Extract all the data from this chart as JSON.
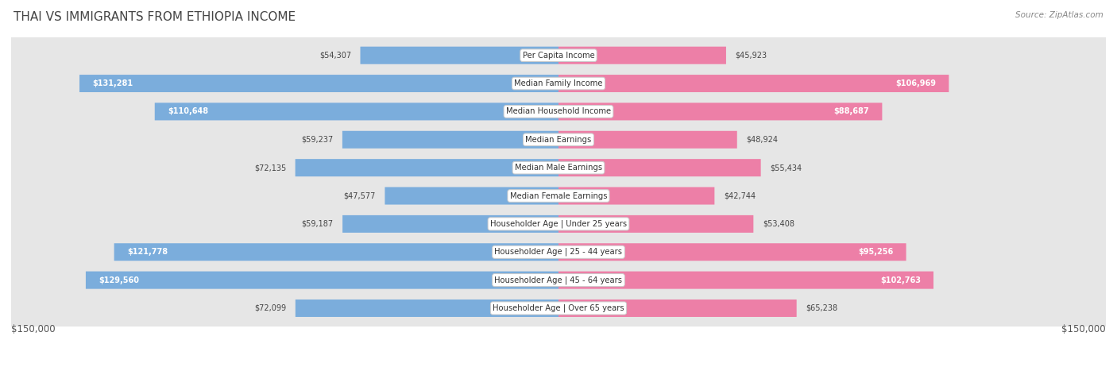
{
  "title": "THAI VS IMMIGRANTS FROM ETHIOPIA INCOME",
  "source": "Source: ZipAtlas.com",
  "categories": [
    "Per Capita Income",
    "Median Family Income",
    "Median Household Income",
    "Median Earnings",
    "Median Male Earnings",
    "Median Female Earnings",
    "Householder Age | Under 25 years",
    "Householder Age | 25 - 44 years",
    "Householder Age | 45 - 64 years",
    "Householder Age | Over 65 years"
  ],
  "thai_values": [
    54307,
    131281,
    110648,
    59237,
    72135,
    47577,
    59187,
    121778,
    129560,
    72099
  ],
  "ethiopia_values": [
    45923,
    106969,
    88687,
    48924,
    55434,
    42744,
    53408,
    95256,
    102763,
    65238
  ],
  "thai_labels": [
    "$54,307",
    "$131,281",
    "$110,648",
    "$59,237",
    "$72,135",
    "$47,577",
    "$59,187",
    "$121,778",
    "$129,560",
    "$72,099"
  ],
  "ethiopia_labels": [
    "$45,923",
    "$106,969",
    "$88,687",
    "$48,924",
    "$55,434",
    "$42,744",
    "$53,408",
    "$95,256",
    "$102,763",
    "$65,238"
  ],
  "max_value": 150000,
  "thai_color_light": "#b8d0ea",
  "thai_color_dark": "#5b9bd5",
  "ethiopia_color_light": "#f4b8cc",
  "ethiopia_color_dark": "#e8508a",
  "row_bg_even": "#f0f0f0",
  "row_bg_odd": "#e6e6e6",
  "row_border": "#d0d0d0",
  "thai_inside_threshold": 90000,
  "ethiopia_inside_threshold": 80000,
  "thai_legend_color": "#6aaad4",
  "ethiopia_legend_color": "#f06090"
}
